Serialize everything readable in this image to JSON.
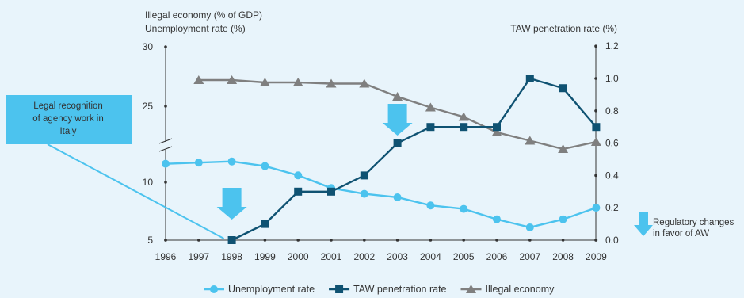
{
  "chart_data": {
    "type": "line",
    "left_axis_title_1": "Illegal economy (% of GDP)",
    "left_axis_title_2": "Unemployment rate (%)",
    "right_axis_title": "TAW penetration rate (%)",
    "x": [
      "1996",
      "1997",
      "1998",
      "1999",
      "2000",
      "2001",
      "2002",
      "2003",
      "2004",
      "2005",
      "2006",
      "2007",
      "2008",
      "2009"
    ],
    "left_axis": {
      "scale": "broken",
      "ticks": [
        "30",
        "25",
        "10",
        "5"
      ],
      "upper_segment_ylim": [
        20,
        30
      ],
      "lower_segment_ylim": [
        5,
        13
      ]
    },
    "right_axis": {
      "ylim": [
        0,
        1.2
      ],
      "ticks": [
        "1.2",
        "1.0",
        "0.8",
        "0.6",
        "0.4",
        "0.2",
        "0.0"
      ]
    },
    "series": [
      {
        "name": "Unemployment rate",
        "axis": "left",
        "color": "#4cc3ee",
        "marker": "circle",
        "values": [
          11.6,
          11.7,
          11.8,
          11.4,
          10.6,
          9.5,
          9.0,
          8.7,
          8.0,
          7.7,
          6.8,
          6.1,
          6.8,
          7.8
        ]
      },
      {
        "name": "TAW penetration rate",
        "axis": "right",
        "color": "#0f5272",
        "marker": "square",
        "values": [
          null,
          null,
          0.0,
          0.1,
          0.3,
          0.3,
          0.4,
          0.6,
          0.7,
          0.7,
          0.7,
          1.0,
          0.94,
          0.7
        ]
      },
      {
        "name": "Illegal economy",
        "axis": "left",
        "color": "#7f7f7f",
        "marker": "triangle",
        "values": [
          null,
          27.2,
          27.2,
          27.0,
          27.0,
          26.9,
          26.9,
          25.8,
          24.9,
          24.1,
          22.8,
          22.1,
          21.4,
          22.0
        ]
      }
    ],
    "annotations": {
      "legal_recognition_lines": [
        "Legal recognition",
        "of agency work in",
        "Italy"
      ],
      "regulatory_lines": [
        "Regulatory changes",
        "in favor of AW"
      ],
      "arrow_years": [
        "1998",
        "2003"
      ],
      "pointer_year": "1998"
    },
    "colors": {
      "background": "#e8f4fb",
      "callout_box": "#4cc3ee",
      "arrow": "#4cc3ee",
      "axis": "#333333"
    }
  }
}
